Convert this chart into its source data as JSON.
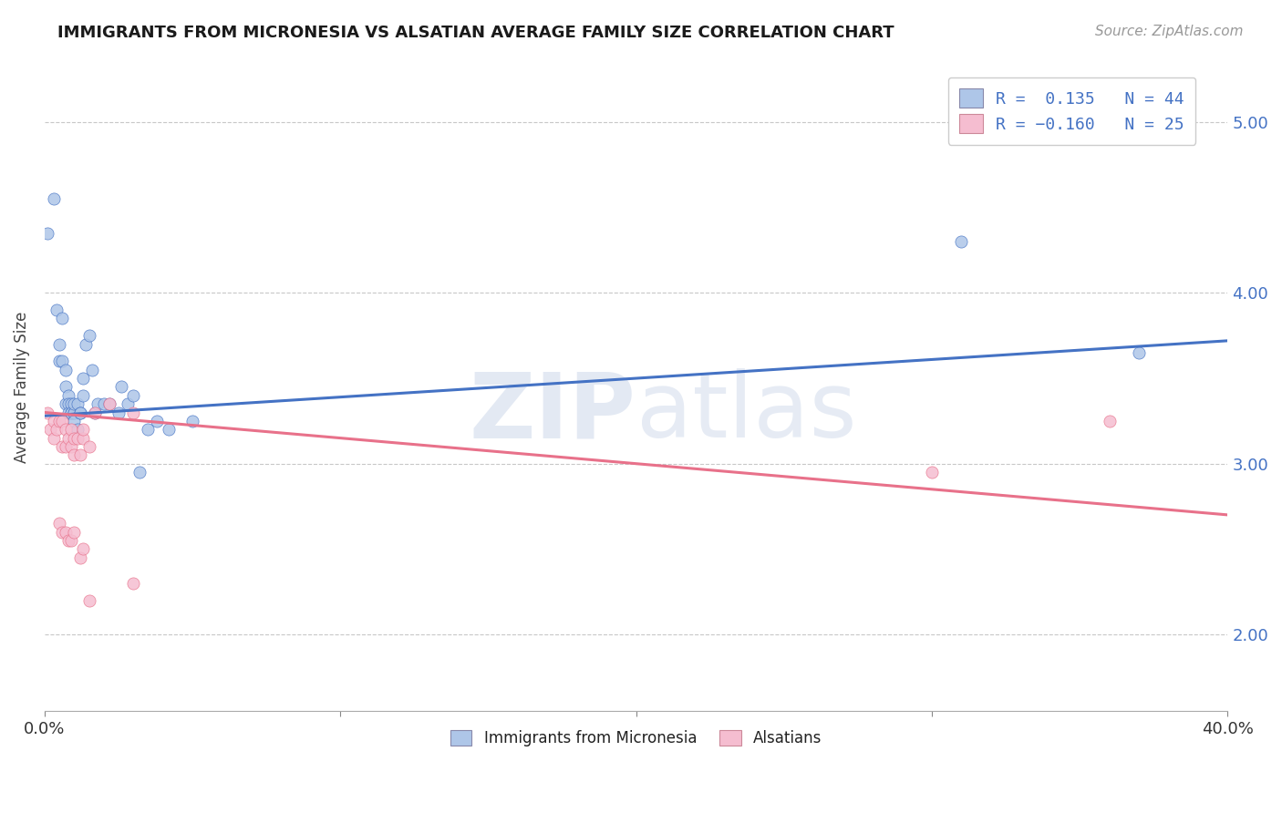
{
  "title": "IMMIGRANTS FROM MICRONESIA VS ALSATIAN AVERAGE FAMILY SIZE CORRELATION CHART",
  "source": "Source: ZipAtlas.com",
  "ylabel": "Average Family Size",
  "xlim": [
    0.0,
    0.4
  ],
  "ylim": [
    1.55,
    5.35
  ],
  "yticks": [
    2.0,
    3.0,
    4.0,
    5.0
  ],
  "blue_R": 0.135,
  "blue_N": 44,
  "pink_R": -0.16,
  "pink_N": 25,
  "blue_color": "#aec6e8",
  "pink_color": "#f5bdd0",
  "blue_line_color": "#4472c4",
  "pink_line_color": "#e8718a",
  "title_color": "#1a1a1a",
  "legend_label_blue": "Immigrants from Micronesia",
  "legend_label_pink": "Alsatians",
  "blue_scatter_x": [
    0.001,
    0.003,
    0.004,
    0.005,
    0.005,
    0.006,
    0.006,
    0.007,
    0.007,
    0.007,
    0.008,
    0.008,
    0.008,
    0.009,
    0.009,
    0.009,
    0.01,
    0.01,
    0.01,
    0.01,
    0.011,
    0.011,
    0.012,
    0.012,
    0.013,
    0.013,
    0.014,
    0.015,
    0.016,
    0.017,
    0.018,
    0.02,
    0.022,
    0.025,
    0.026,
    0.028,
    0.03,
    0.032,
    0.035,
    0.038,
    0.042,
    0.05,
    0.31,
    0.37
  ],
  "blue_scatter_y": [
    4.35,
    4.55,
    3.9,
    3.6,
    3.7,
    3.85,
    3.6,
    3.55,
    3.45,
    3.35,
    3.4,
    3.35,
    3.3,
    3.3,
    3.35,
    3.3,
    3.3,
    3.3,
    3.25,
    3.35,
    3.2,
    3.35,
    3.3,
    3.3,
    3.4,
    3.5,
    3.7,
    3.75,
    3.55,
    3.3,
    3.35,
    3.35,
    3.35,
    3.3,
    3.45,
    3.35,
    3.4,
    2.95,
    3.2,
    3.25,
    3.2,
    3.25,
    4.3,
    3.65
  ],
  "pink_scatter_x": [
    0.001,
    0.002,
    0.003,
    0.003,
    0.004,
    0.005,
    0.006,
    0.006,
    0.007,
    0.007,
    0.008,
    0.009,
    0.009,
    0.01,
    0.01,
    0.011,
    0.012,
    0.013,
    0.013,
    0.015,
    0.017,
    0.022,
    0.03,
    0.3,
    0.36
  ],
  "pink_scatter_y": [
    3.3,
    3.2,
    3.25,
    3.15,
    3.2,
    3.25,
    3.1,
    3.25,
    3.2,
    3.1,
    3.15,
    3.2,
    3.1,
    3.15,
    3.05,
    3.15,
    3.05,
    3.15,
    3.2,
    3.1,
    3.3,
    3.35,
    3.3,
    2.95,
    3.25
  ],
  "pink_scatter_extra_x": [
    0.005,
    0.006,
    0.007,
    0.008,
    0.009,
    0.01,
    0.012,
    0.013,
    0.015,
    0.03
  ],
  "pink_scatter_extra_y": [
    2.65,
    2.6,
    2.6,
    2.55,
    2.55,
    2.6,
    2.45,
    2.5,
    2.2,
    2.3
  ],
  "blue_trend_x": [
    0.0,
    0.4
  ],
  "blue_trend_y": [
    3.28,
    3.72
  ],
  "pink_trend_x": [
    0.0,
    0.4
  ],
  "pink_trend_y": [
    3.3,
    2.7
  ],
  "watermark_zip": "ZIP",
  "watermark_atlas": "atlas",
  "background_color": "#ffffff",
  "grid_color": "#c8c8c8"
}
